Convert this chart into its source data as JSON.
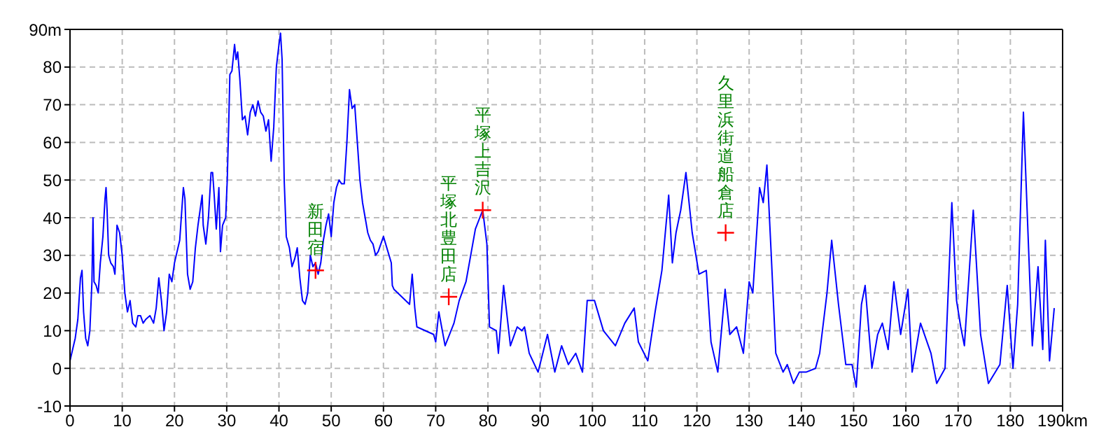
{
  "chart_data": {
    "type": "line",
    "x": [
      0,
      0.5,
      1,
      1.5,
      2,
      2.3,
      2.6,
      3,
      3.4,
      3.8,
      4.2,
      4.4,
      4.6,
      5,
      5.4,
      5.8,
      6.3,
      6.7,
      6.9,
      7.1,
      7.4,
      7.8,
      8.3,
      8.6,
      9,
      9.5,
      10,
      10.5,
      11,
      11.5,
      12,
      12.6,
      13,
      13.5,
      14,
      14.5,
      15.3,
      16,
      16.5,
      17,
      17.5,
      18,
      18.5,
      19,
      19.5,
      20,
      21,
      21.5,
      21.7,
      22,
      22.5,
      23,
      23.5,
      24,
      24.5,
      25,
      25.3,
      25.5,
      26,
      26.5,
      27,
      27.3,
      27.6,
      28,
      28.5,
      28.8,
      29.2,
      29.8,
      30.1,
      30.4,
      30.6,
      31,
      31.5,
      31.8,
      32.1,
      32.5,
      33,
      33.5,
      34,
      34.5,
      35,
      35.5,
      36,
      36.5,
      37,
      37.5,
      38,
      38.5,
      39,
      39.5,
      40,
      40.3,
      40.6,
      41,
      41.4,
      42,
      42.5,
      43,
      43.5,
      44,
      44.5,
      45,
      45.5,
      46,
      46.5,
      47,
      47.5,
      48,
      48.5,
      49,
      49.5,
      50,
      50.5,
      51,
      51.5,
      52,
      52.5,
      53,
      53.5,
      54,
      54.5,
      55,
      55.5,
      56,
      56.5,
      57,
      57.5,
      58,
      58.5,
      59,
      60,
      61.5,
      61.7,
      62,
      65,
      65.5,
      66,
      66.4,
      69.6,
      70,
      70.6,
      71.8,
      73.5,
      74.5,
      75.8,
      77.6,
      79,
      79.8,
      80.3,
      81.6,
      82,
      83,
      84.3,
      85.6,
      86.5,
      87,
      87.9,
      89.6,
      91.4,
      92.8,
      94.1,
      95.4,
      96.8,
      98.1,
      99,
      100.4,
      102.1,
      104.4,
      106.2,
      108,
      108.8,
      110.6,
      112,
      113.3,
      114.6,
      115.3,
      116,
      116.9,
      117.9,
      119.1,
      120.4,
      121.8,
      122.7,
      124,
      125.4,
      126.3,
      127.6,
      128.9,
      130,
      130.7,
      132,
      132.7,
      133.4,
      134.2,
      135.1,
      136.5,
      137.3,
      138.5,
      139.6,
      140.9,
      142.7,
      143.5,
      144.9,
      145.8,
      147.1,
      148.5,
      149.7,
      150.5,
      151.5,
      152.2,
      153.5,
      154.6,
      155.5,
      156.6,
      157.7,
      159,
      160.4,
      161.2,
      162.8,
      164.8,
      165.9,
      167.5,
      168.8,
      169.7,
      170.5,
      171.2,
      172.9,
      174.3,
      175.8,
      178,
      179.4,
      180.5,
      181.4,
      182.5,
      183.4,
      184.2,
      185.3,
      186.2,
      186.7,
      187.5,
      188.4
    ],
    "series": [
      {
        "color": "#0000ff",
        "values": [
          2,
          5,
          8,
          13,
          24,
          26,
          15,
          8,
          6,
          10,
          23,
          40,
          23,
          22,
          20,
          28,
          35,
          45,
          48,
          42,
          30,
          28,
          27,
          25,
          38,
          36,
          30,
          20,
          15,
          18,
          12,
          11,
          14,
          14,
          12,
          13,
          14,
          12,
          16,
          24,
          18,
          10,
          15,
          25,
          23,
          28,
          34,
          44,
          48,
          45,
          25,
          21,
          23,
          32,
          38,
          43,
          46,
          38,
          33,
          40,
          52,
          52,
          46,
          37,
          48,
          31,
          38,
          40,
          50,
          66,
          78,
          79,
          86,
          82,
          84,
          77,
          66,
          67,
          62,
          68,
          70,
          67,
          71,
          68,
          67,
          63,
          66,
          55,
          64,
          80,
          86,
          89,
          82,
          50,
          35,
          32,
          27,
          29,
          32,
          24,
          18,
          17,
          20,
          30,
          27,
          28,
          25,
          28,
          34,
          38,
          41,
          35,
          44,
          48,
          50,
          49,
          49,
          60,
          74,
          69,
          70,
          60,
          50,
          44,
          40,
          36,
          34,
          33,
          30,
          31,
          35,
          28,
          22,
          21,
          17,
          25,
          16,
          11,
          9,
          7,
          15,
          6,
          12,
          18,
          23,
          37,
          42,
          33,
          11,
          10,
          4,
          22,
          6,
          11,
          10,
          11,
          4,
          -1,
          9,
          -1,
          6,
          1,
          4,
          -1,
          18,
          18,
          10,
          6,
          12,
          16,
          7,
          2,
          15,
          26,
          46,
          28,
          36,
          42,
          52,
          36,
          25,
          26,
          7,
          -1,
          21,
          9,
          11,
          4,
          23,
          20,
          48,
          44,
          54,
          31,
          4,
          -1,
          1,
          -4,
          -1,
          -1,
          0,
          4,
          20,
          34,
          17,
          1,
          1,
          -5,
          17,
          22,
          0,
          9,
          12,
          5,
          23,
          9,
          21,
          -1,
          12,
          4,
          -4,
          0,
          44,
          18,
          11,
          6,
          42,
          9,
          -4,
          1,
          22,
          0,
          17,
          68,
          35,
          6,
          27,
          5,
          34,
          2,
          16
        ]
      },
      {
        "type": "scatter",
        "color": "#ff0000",
        "marker": "cross",
        "x": [
          47,
          72.5,
          79,
          125.5
        ],
        "values": [
          26,
          19,
          42,
          36
        ]
      }
    ],
    "xlim": [
      0,
      190
    ],
    "xticks": [
      0,
      10,
      20,
      30,
      40,
      50,
      60,
      70,
      80,
      90,
      100,
      110,
      120,
      130,
      140,
      150,
      160,
      170,
      180,
      {
        "value": 190,
        "label": "190km"
      }
    ],
    "ylim": [
      -10,
      90
    ],
    "yticks": [
      -10,
      0,
      10,
      20,
      30,
      40,
      50,
      60,
      70,
      80,
      {
        "value": 90,
        "label": "90m"
      }
    ],
    "grid": true,
    "marker": "none",
    "line_style": "solid",
    "annotations": [
      {
        "text": "新田宿",
        "x": 47,
        "y": 26
      },
      {
        "text": "平塚北豊田店",
        "x": 72.5,
        "y": 19
      },
      {
        "text": "平塚上吉沢",
        "x": 79,
        "y": 42
      },
      {
        "text": "久里浜街道船倉店",
        "x": 125.5,
        "y": 36
      }
    ]
  }
}
